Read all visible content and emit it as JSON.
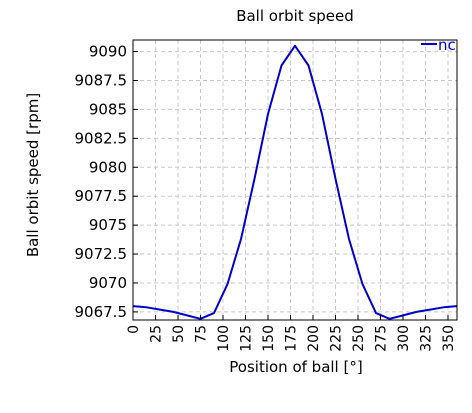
{
  "chart_data": {
    "type": "line",
    "title": "Ball orbit speed",
    "xlabel": "Position of ball [°]",
    "ylabel": "Ball orbit speed [rpm]",
    "xlim": [
      0,
      360
    ],
    "ylim": [
      9066.8,
      9091.0
    ],
    "x_ticks": [
      "0",
      "25",
      "50",
      "75",
      "100",
      "125",
      "150",
      "175",
      "200",
      "225",
      "250",
      "275",
      "300",
      "325",
      "350"
    ],
    "y_ticks": [
      "9067.5",
      "9070",
      "9072.5",
      "9075",
      "9077.5",
      "9080",
      "9082.5",
      "9085",
      "9087.5",
      "9090"
    ],
    "grid": true,
    "legend_position": "top-right",
    "series": [
      {
        "name": "nc",
        "color": "#0000cc",
        "x": [
          0,
          15,
          30,
          45,
          60,
          75,
          90,
          105,
          120,
          135,
          150,
          165,
          180,
          195,
          210,
          225,
          240,
          255,
          270,
          285,
          300,
          315,
          330,
          345,
          360
        ],
        "y": [
          9068.0,
          9067.9,
          9067.7,
          9067.5,
          9067.2,
          9066.9,
          9067.4,
          9069.9,
          9073.8,
          9079.0,
          9084.6,
          9088.8,
          9090.5,
          9088.8,
          9084.6,
          9079.0,
          9073.8,
          9069.9,
          9067.4,
          9066.9,
          9067.2,
          9067.5,
          9067.7,
          9067.9,
          9068.0
        ]
      }
    ]
  }
}
